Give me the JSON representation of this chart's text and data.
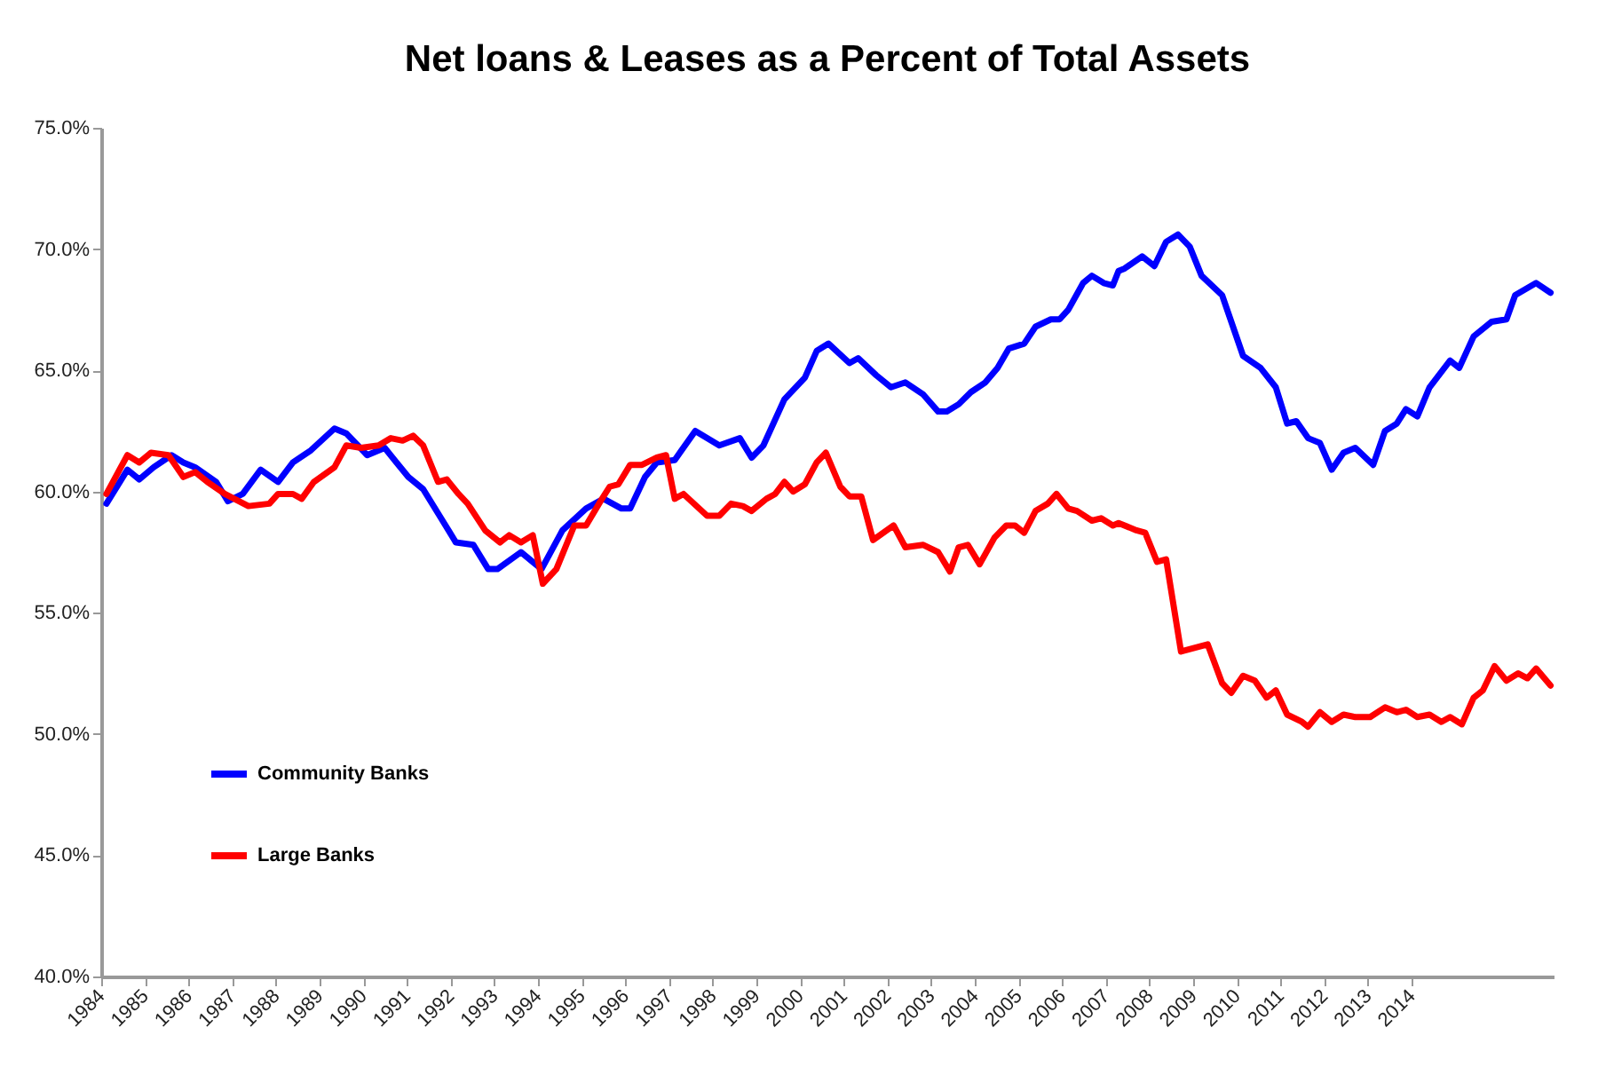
{
  "chart_data": {
    "type": "line",
    "title": "Net loans & Leases as a Percent of Total Assets",
    "xlim": [
      1984,
      2017.25
    ],
    "xticks": [
      1984,
      1985,
      1986,
      1987,
      1988,
      1989,
      1990,
      1991,
      1992,
      1993,
      1994,
      1995,
      1996,
      1997,
      1998,
      1999,
      2000,
      2001,
      2002,
      2003,
      2004,
      2005,
      2006,
      2007,
      2008,
      2009,
      2010,
      2011,
      2012,
      2013,
      2014
    ],
    "ylim": [
      40,
      75
    ],
    "yticks": [
      {
        "value": 40,
        "label": "40.0%"
      },
      {
        "value": 45,
        "label": "45.0%"
      },
      {
        "value": 50,
        "label": "50.0%"
      },
      {
        "value": 55,
        "label": "55.0%"
      },
      {
        "value": 60,
        "label": "60.0%"
      },
      {
        "value": 65,
        "label": "65.0%"
      },
      {
        "value": 70,
        "label": "70.0%"
      },
      {
        "value": 75,
        "label": "75.0%"
      }
    ],
    "grid": false,
    "legend": "bottom left",
    "marker": "none",
    "line_style": "solid",
    "series": [
      {
        "name": "Community Banks",
        "color": "#0000ff",
        "x": [
          1984.12,
          1984.6,
          1984.87,
          1985.2,
          1985.61,
          1985.88,
          1986.15,
          1986.63,
          1986.9,
          1987.24,
          1987.65,
          1988.05,
          1988.39,
          1988.8,
          1989.34,
          1989.61,
          1990.09,
          1990.49,
          1990.76,
          1991.03,
          1991.37,
          1991.78,
          1992.12,
          1992.52,
          1992.86,
          1993.07,
          1993.61,
          1993.88,
          1994.08,
          1994.56,
          1995.1,
          1995.5,
          1995.91,
          1996.11,
          1996.45,
          1996.72,
          1997.13,
          1997.6,
          1998.15,
          1998.62,
          1998.89,
          1999.16,
          1999.64,
          2000.11,
          2000.38,
          2000.65,
          2001.13,
          2001.33,
          2001.74,
          2002.08,
          2002.41,
          2002.82,
          2003.16,
          2003.36,
          2003.63,
          2003.91,
          2004.24,
          2004.52,
          2004.78,
          2005.13,
          2005.39,
          2005.74,
          2005.94,
          2006.14,
          2006.48,
          2006.68,
          2006.95,
          2007.16,
          2007.29,
          2007.43,
          2007.83,
          2008.11,
          2008.38,
          2008.65,
          2008.92,
          2009.19,
          2009.66,
          2010.14,
          2010.54,
          2010.89,
          2011.15,
          2011.36,
          2011.63,
          2011.9,
          2012.17,
          2012.44,
          2012.71,
          2013.12,
          2013.39,
          2013.66,
          2013.87,
          2014.13,
          2014.41,
          2014.88,
          2015.09,
          2015.42,
          2015.83,
          2016.17,
          2016.37,
          2016.85,
          2017.18
        ],
        "values": [
          59.5,
          60.9,
          60.5,
          61.0,
          61.5,
          61.2,
          61.0,
          60.4,
          59.6,
          59.9,
          60.9,
          60.4,
          61.2,
          61.7,
          62.6,
          62.4,
          61.5,
          61.8,
          61.2,
          60.6,
          60.1,
          58.9,
          57.9,
          57.8,
          56.8,
          56.8,
          57.5,
          57.1,
          56.8,
          58.4,
          59.3,
          59.7,
          59.3,
          59.3,
          60.6,
          61.2,
          61.3,
          62.5,
          61.9,
          62.2,
          61.4,
          61.9,
          63.8,
          64.7,
          65.8,
          66.1,
          65.3,
          65.5,
          64.8,
          64.3,
          64.5,
          64.0,
          63.3,
          63.3,
          63.6,
          64.1,
          64.5,
          65.1,
          65.9,
          66.1,
          66.8,
          67.1,
          67.1,
          67.5,
          68.6,
          68.9,
          68.6,
          68.5,
          69.1,
          69.2,
          69.7,
          69.3,
          70.3,
          70.6,
          70.1,
          68.9,
          68.1,
          65.6,
          65.1,
          64.3,
          62.8,
          62.9,
          62.2,
          62.0,
          60.9,
          61.6,
          61.8,
          61.1,
          62.5,
          62.8,
          63.4,
          63.1,
          64.3,
          65.4,
          65.1,
          66.4,
          67.0,
          67.1,
          68.1,
          68.6,
          68.2
        ]
      },
      {
        "name": "Large Banks",
        "color": "#ff0000",
        "x": [
          1984.12,
          1984.6,
          1984.87,
          1985.14,
          1985.54,
          1985.88,
          1986.15,
          1986.43,
          1986.83,
          1987.37,
          1987.85,
          1988.05,
          1988.39,
          1988.59,
          1988.87,
          1989.34,
          1989.61,
          1989.95,
          1990.35,
          1990.63,
          1990.9,
          1991.14,
          1991.37,
          1991.71,
          1991.91,
          1992.18,
          1992.39,
          1992.79,
          1993.13,
          1993.34,
          1993.61,
          1993.88,
          1994.11,
          1994.42,
          1994.83,
          1995.1,
          1995.43,
          1995.64,
          1995.84,
          1996.11,
          1996.38,
          1996.72,
          1996.93,
          1997.13,
          1997.33,
          1997.87,
          1998.15,
          1998.42,
          1998.69,
          1998.89,
          1999.23,
          1999.43,
          1999.64,
          1999.84,
          2000.11,
          2000.38,
          2000.59,
          2000.92,
          2001.13,
          2001.4,
          2001.67,
          2002.14,
          2002.41,
          2002.82,
          2003.16,
          2003.43,
          2003.63,
          2003.84,
          2004.11,
          2004.45,
          2004.72,
          2004.92,
          2005.13,
          2005.39,
          2005.67,
          2005.87,
          2006.14,
          2006.34,
          2006.68,
          2006.89,
          2007.16,
          2007.29,
          2007.7,
          2007.9,
          2008.17,
          2008.38,
          2008.72,
          2009.33,
          2009.66,
          2009.87,
          2010.14,
          2010.41,
          2010.68,
          2010.89,
          2011.15,
          2011.49,
          2011.63,
          2011.9,
          2012.17,
          2012.44,
          2012.71,
          2013.05,
          2013.39,
          2013.66,
          2013.87,
          2014.13,
          2014.41,
          2014.68,
          2014.88,
          2015.15,
          2015.42,
          2015.63,
          2015.9,
          2016.17,
          2016.44,
          2016.65,
          2016.85,
          2017.18
        ],
        "values": [
          59.9,
          61.5,
          61.2,
          61.6,
          61.5,
          60.6,
          60.8,
          60.4,
          59.9,
          59.4,
          59.5,
          59.9,
          59.9,
          59.7,
          60.4,
          61.0,
          61.9,
          61.8,
          61.9,
          62.2,
          62.1,
          62.3,
          61.9,
          60.4,
          60.5,
          59.9,
          59.5,
          58.4,
          57.9,
          58.2,
          57.9,
          58.2,
          56.2,
          56.8,
          58.6,
          58.6,
          59.6,
          60.2,
          60.3,
          61.1,
          61.1,
          61.4,
          61.5,
          59.7,
          59.9,
          59.0,
          59.0,
          59.5,
          59.4,
          59.2,
          59.7,
          59.9,
          60.4,
          60.0,
          60.3,
          61.2,
          61.6,
          60.2,
          59.8,
          59.8,
          58.0,
          58.6,
          57.7,
          57.8,
          57.5,
          56.7,
          57.7,
          57.8,
          57.0,
          58.1,
          58.6,
          58.6,
          58.3,
          59.2,
          59.5,
          59.9,
          59.3,
          59.2,
          58.8,
          58.9,
          58.6,
          58.7,
          58.4,
          58.3,
          57.1,
          57.2,
          53.4,
          53.7,
          52.1,
          51.7,
          52.4,
          52.2,
          51.5,
          51.8,
          50.8,
          50.5,
          50.3,
          50.9,
          50.5,
          50.8,
          50.7,
          50.7,
          51.1,
          50.9,
          51.0,
          50.7,
          50.8,
          50.5,
          50.7,
          50.4,
          51.5,
          51.8,
          52.8,
          52.2,
          52.5,
          52.3,
          52.7,
          52.0
        ]
      }
    ]
  }
}
